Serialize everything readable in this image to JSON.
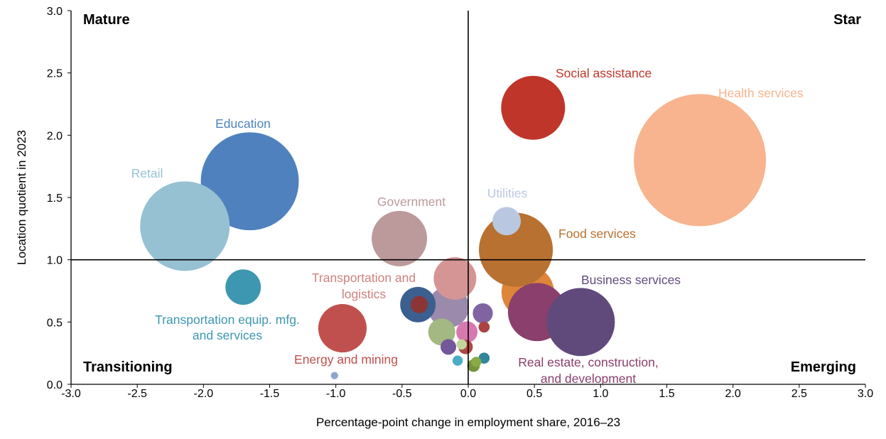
{
  "chart_data": {
    "type": "bubble",
    "xlabel": "Percentage-point change in employment share, 2016–23",
    "ylabel": "Location quotient in 2023",
    "xlim": [
      -3.0,
      3.0
    ],
    "ylim": [
      0.0,
      3.0
    ],
    "x_ticks": [
      "-3.0",
      "-2.5",
      "-2.0",
      "-1.5",
      "-1.0",
      "-0.5",
      "0.0",
      "0.5",
      "1.0",
      "1.5",
      "2.0",
      "2.5",
      "3.0"
    ],
    "y_ticks": [
      "0.0",
      "0.5",
      "1.0",
      "1.5",
      "2.0",
      "2.5",
      "3.0"
    ],
    "reference_lines": {
      "x": 0.0,
      "y": 1.0
    },
    "grid": false,
    "quadrants": {
      "top_left": "Mature",
      "top_right": "Star",
      "bottom_left": "Transitioning",
      "bottom_right": "Emerging"
    },
    "size_note": "relative bubble area, largest = 100",
    "points": [
      {
        "label": "Health services",
        "x": 1.75,
        "y": 1.8,
        "size": 100,
        "color": "#F7B48E"
      },
      {
        "label": "Social assistance",
        "x": 0.49,
        "y": 2.22,
        "size": 23.4,
        "color": "#C0352A"
      },
      {
        "label": "Education",
        "x": -1.65,
        "y": 1.63,
        "size": 55.0,
        "color": "#4E81BD"
      },
      {
        "label": "Retail",
        "x": -2.14,
        "y": 1.27,
        "size": 45.9,
        "color": "#96C1D3"
      },
      {
        "label": "Government",
        "x": -0.52,
        "y": 1.17,
        "size": 17.6,
        "color": "#BC9A9C"
      },
      {
        "label": "",
        "x": 0.45,
        "y": 0.74,
        "size": 15.8,
        "color": "#DE853A"
      },
      {
        "label": "Food services",
        "x": 0.36,
        "y": 1.08,
        "size": 31.3,
        "color": "#B87130"
      },
      {
        "label": "Utilities",
        "x": 0.29,
        "y": 1.31,
        "size": 4.6,
        "color": "#B9C8E0"
      },
      {
        "label": "Real estate, construction, and development",
        "x": 0.52,
        "y": 0.58,
        "size": 19.4,
        "color": "#8A3F6C"
      },
      {
        "label": "Business services",
        "x": 0.85,
        "y": 0.5,
        "size": 26.6,
        "color": "#604A7B"
      },
      {
        "label": "Transportation equip. mfg. and services",
        "x": -1.7,
        "y": 0.78,
        "size": 7.2,
        "color": "#3D97B0"
      },
      {
        "label": "Energy and mining",
        "x": -0.95,
        "y": 0.45,
        "size": 13.4,
        "color": "#C0504D"
      },
      {
        "label": "",
        "x": -1.01,
        "y": 0.07,
        "size": 0.3,
        "color": "#8FA4CF"
      },
      {
        "label": "",
        "x": -0.15,
        "y": 0.62,
        "size": 9.7,
        "color": "#9B8AAB"
      },
      {
        "label": "Transportation and logistics",
        "x": -0.1,
        "y": 0.85,
        "size": 10.4,
        "color": "#D59594"
      },
      {
        "label": "",
        "x": -0.38,
        "y": 0.64,
        "size": 7.2,
        "color": "#3B5F8F"
      },
      {
        "label": "",
        "x": -0.37,
        "y": 0.64,
        "size": 1.7,
        "color": "#8B3535"
      },
      {
        "label": "",
        "x": -0.2,
        "y": 0.42,
        "size": 4.2,
        "color": "#A3B883"
      },
      {
        "label": "",
        "x": -0.01,
        "y": 0.42,
        "size": 2.6,
        "color": "#D779B0"
      },
      {
        "label": "",
        "x": 0.11,
        "y": 0.57,
        "size": 2.3,
        "color": "#8064A2"
      },
      {
        "label": "",
        "x": 0.12,
        "y": 0.46,
        "size": 0.7,
        "color": "#AA4444"
      },
      {
        "label": "",
        "x": -0.15,
        "y": 0.3,
        "size": 1.4,
        "color": "#72579A"
      },
      {
        "label": "",
        "x": -0.02,
        "y": 0.3,
        "size": 1.2,
        "color": "#B04745"
      },
      {
        "label": "",
        "x": -0.05,
        "y": 0.32,
        "size": 0.6,
        "color": "#C3D69B"
      },
      {
        "label": "",
        "x": -0.08,
        "y": 0.19,
        "size": 0.6,
        "color": "#4BACC6"
      },
      {
        "label": "",
        "x": 0.12,
        "y": 0.21,
        "size": 0.7,
        "color": "#31859C"
      },
      {
        "label": "",
        "x": 0.04,
        "y": 0.15,
        "size": 0.9,
        "color": "#77933C"
      },
      {
        "label": "",
        "x": 0.06,
        "y": 0.18,
        "size": 0.6,
        "color": "#8AAA44"
      }
    ]
  }
}
